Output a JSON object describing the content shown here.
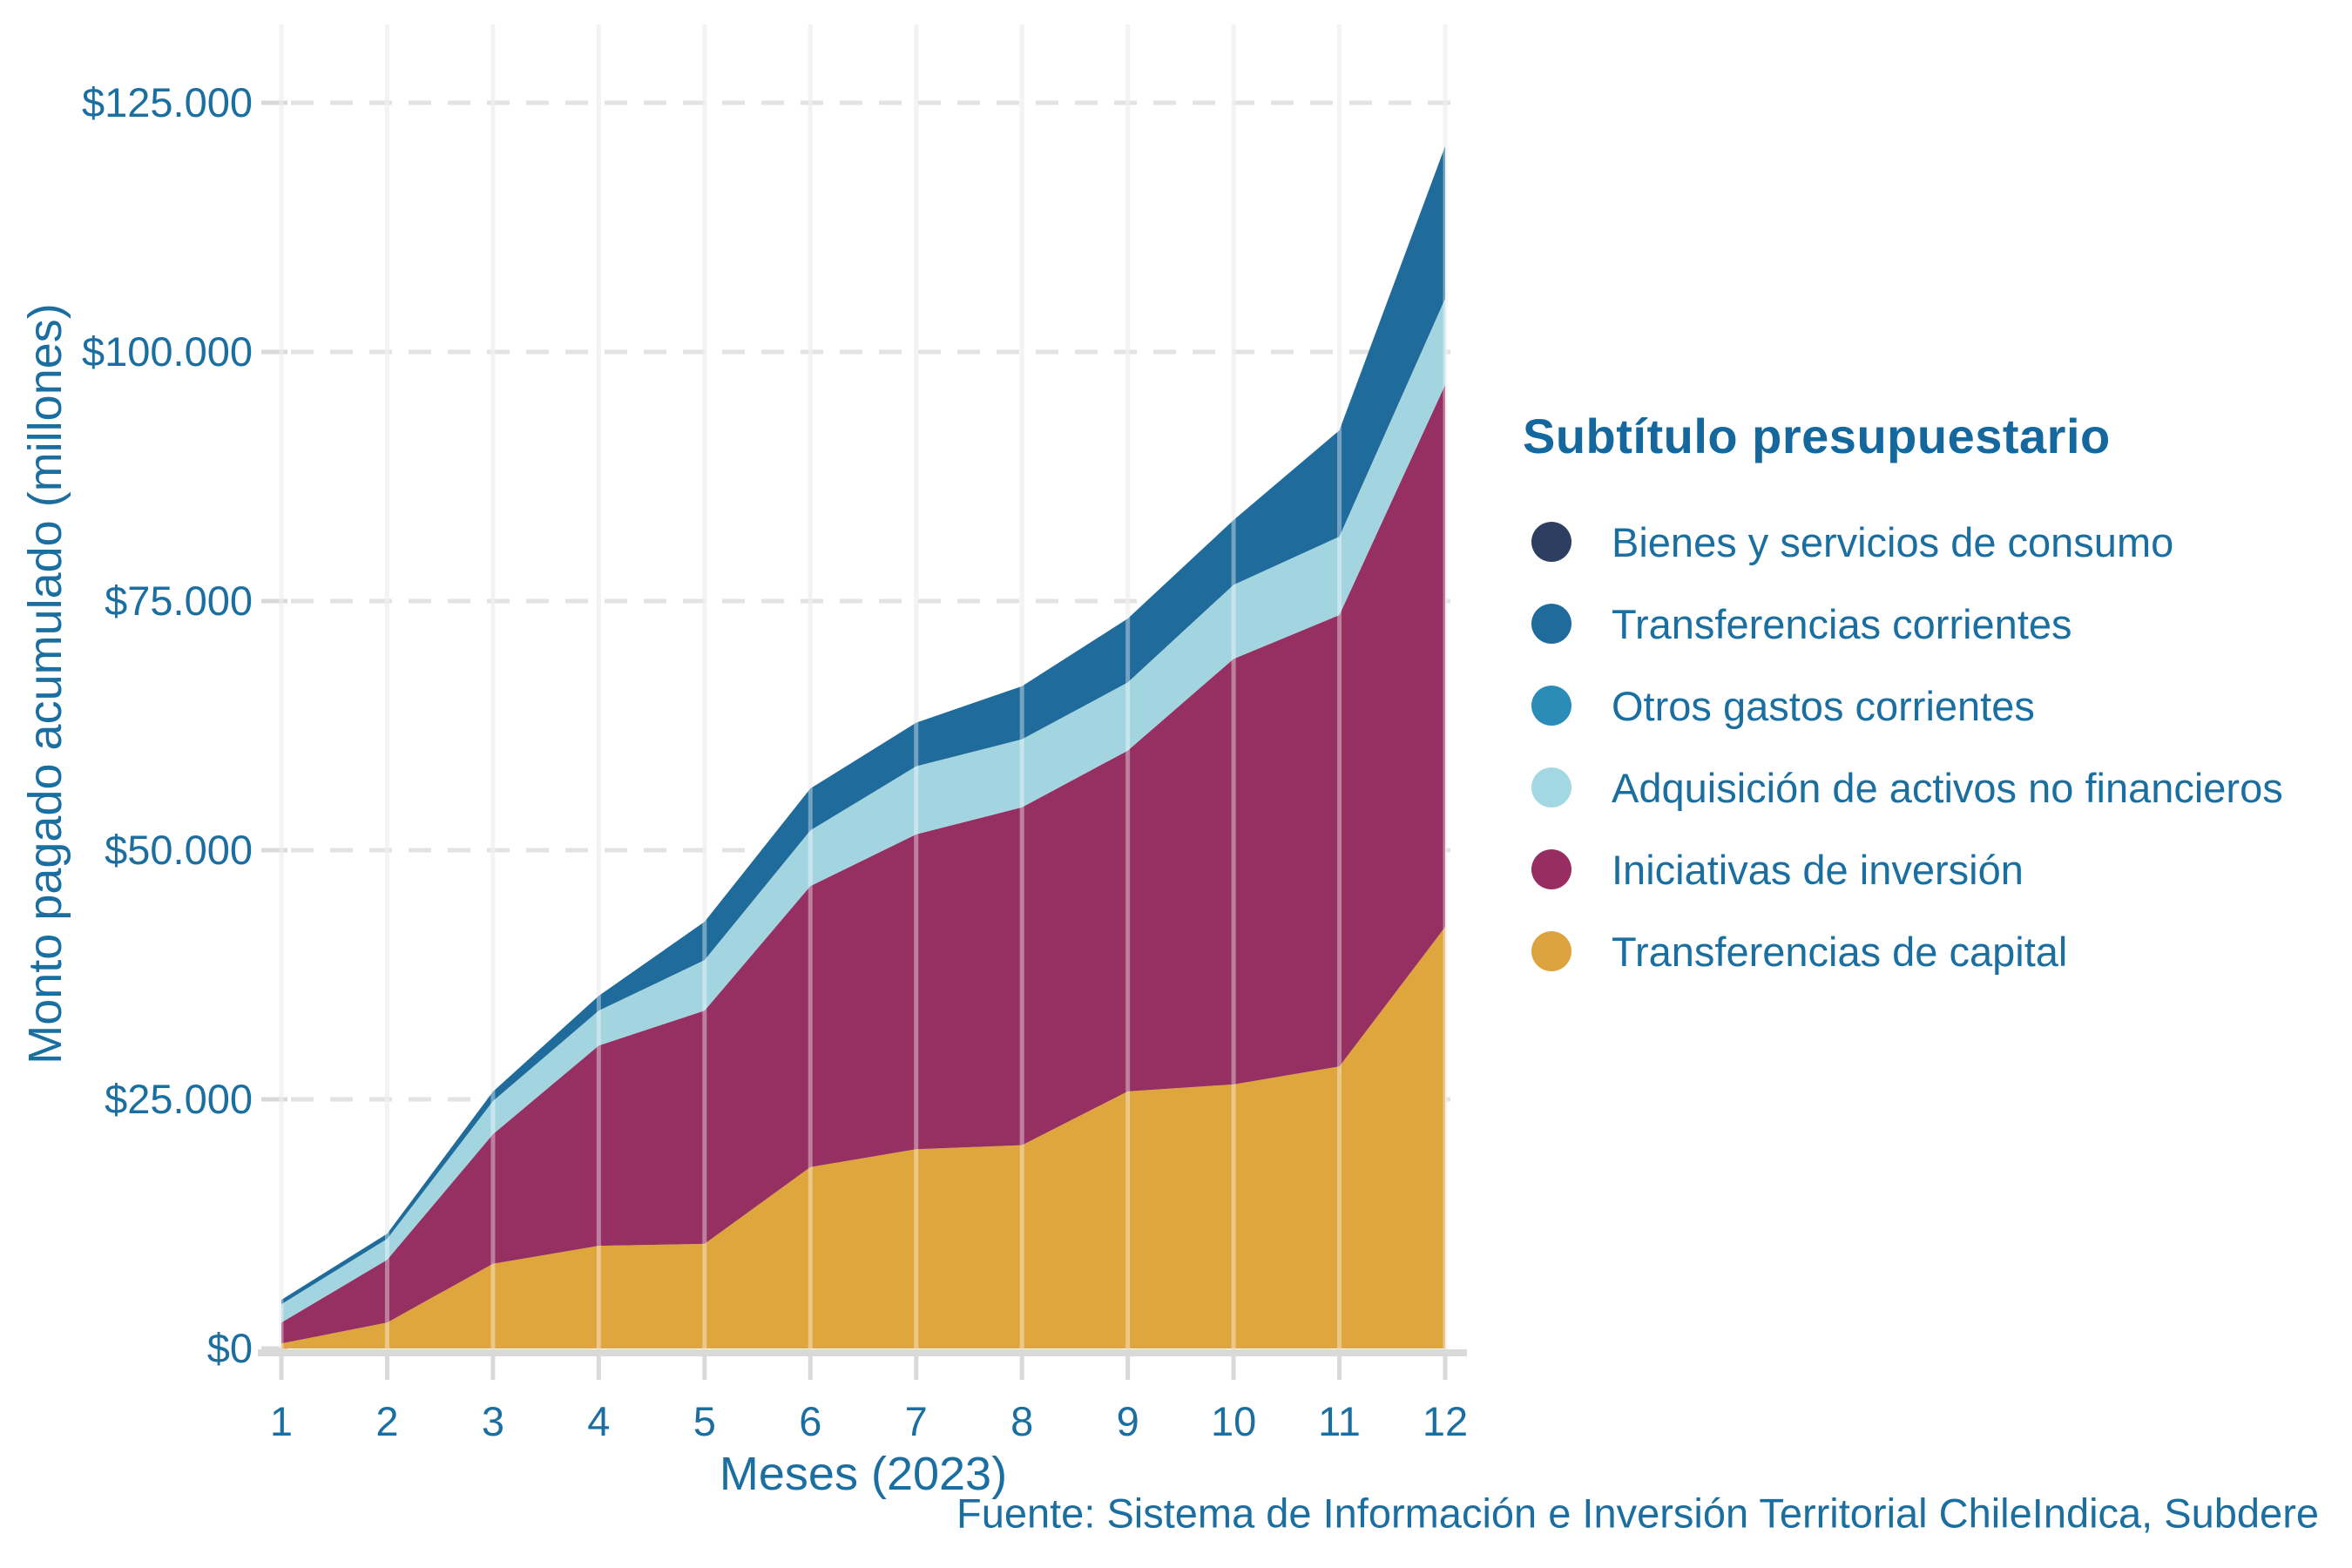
{
  "page": {
    "footer": "Fuente: Sistema de Información e Inversión Territorial ChileIndica, Subdere"
  },
  "legend": {
    "title": "Subtítulo presupuestario",
    "position": "right",
    "items": [
      {
        "label": "Bienes y servicios de consumo",
        "color": "#2d3e60"
      },
      {
        "label": "Transferencias corrientes",
        "color": "#1e6b9c"
      },
      {
        "label": "Otros gastos corrientes",
        "color": "#2b8cb8"
      },
      {
        "label": "Adquisición de activos no financieros",
        "color": "#a3d8e3"
      },
      {
        "label": "Iniciativas de inversión",
        "color": "#982d61"
      },
      {
        "label": "Transferencias de capital",
        "color": "#dda33f"
      }
    ]
  },
  "chart_data": {
    "type": "area",
    "stacked": true,
    "title": "",
    "xlabel": "Meses (2023)",
    "ylabel": "Monto pagado acumulado (millones)",
    "x": [
      1,
      2,
      3,
      4,
      5,
      6,
      7,
      8,
      9,
      10,
      11,
      12
    ],
    "x_tick_labels": [
      "1",
      "2",
      "3",
      "4",
      "5",
      "6",
      "7",
      "8",
      "9",
      "10",
      "11",
      "12"
    ],
    "y_ticks": [
      {
        "value": 0,
        "label": "$0"
      },
      {
        "value": 25000,
        "label": "$25.000"
      },
      {
        "value": 50000,
        "label": "$50.000"
      },
      {
        "value": 75000,
        "label": "$75.000"
      },
      {
        "value": 100000,
        "label": "$100.000"
      },
      {
        "value": 125000,
        "label": "$125.000"
      }
    ],
    "ylim": [
      0,
      132500
    ],
    "grid": {
      "vertical_lines": true,
      "horizontal_dashed": true
    },
    "legend_position": "right",
    "units": "millones de pesos (CLP), montos acumulados por mes",
    "series_note": "stack order bottom to top; values are cumulative totals per month",
    "series": [
      {
        "key": "transferencias_capital",
        "name": "Transferencias de capital",
        "color": "#dfa63e",
        "values": [
          500,
          2600,
          8500,
          10300,
          10500,
          18200,
          20000,
          20400,
          25800,
          26500,
          28300,
          42300
        ]
      },
      {
        "key": "iniciativas_inversion",
        "name": "Iniciativas de inversión",
        "color": "#963062",
        "values": [
          2100,
          6300,
          13000,
          20100,
          23400,
          28200,
          31600,
          33900,
          34200,
          42700,
          45300,
          54400
        ]
      },
      {
        "key": "adquisicion_activos",
        "name": "Adquisición de activos no financieros",
        "color": "#a3d5e0",
        "values": [
          1840,
          2100,
          3320,
          3500,
          5070,
          5590,
          6820,
          6830,
          6840,
          7430,
          7870,
          8650
        ]
      },
      {
        "key": "otros_gastos_corrientes",
        "name": "Otros gastos corrientes",
        "color": "#2b8cb8",
        "values": [
          0,
          0,
          0,
          0,
          0,
          0,
          0,
          0,
          0,
          0,
          0,
          0
        ]
      },
      {
        "key": "transferencias_corrientes",
        "name": "Transferencias corrientes",
        "color": "#1e6b9c",
        "values": [
          440,
          520,
          960,
          1490,
          3850,
          4200,
          4370,
          5330,
          6400,
          6500,
          10660,
          15300
        ]
      },
      {
        "key": "bienes_servicios_consumo",
        "name": "Bienes y servicios de consumo",
        "color": "#2d3e60",
        "values": [
          0,
          0,
          0,
          0,
          0,
          0,
          0,
          0,
          0,
          0,
          0,
          0
        ]
      }
    ],
    "totals_by_month": [
      4880,
      11520,
      25780,
      35390,
      42820,
      56190,
      62790,
      66460,
      73240,
      83130,
      92130,
      120650
    ]
  }
}
